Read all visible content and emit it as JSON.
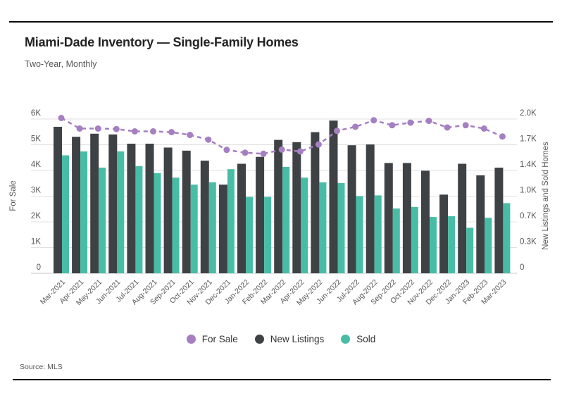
{
  "header": {
    "title": "Miami-Dade Inventory — Single-Family Homes",
    "subtitle": "Two-Year, Monthly"
  },
  "footer": {
    "source": "Source: MLS"
  },
  "colors": {
    "for_sale": "#a57fc2",
    "new_listings": "#3f4245",
    "sold": "#48bda6",
    "grid": "#e0e0e0",
    "baseline": "#c9c9c9",
    "axis_text": "#565656",
    "rule": "#0b0b0b"
  },
  "chart_data": {
    "type": "bar+line",
    "title": "Miami-Dade Inventory — Single-Family Homes",
    "subtitle": "Two-Year, Monthly",
    "source": "MLS",
    "grid": true,
    "legend_position": "bottom",
    "categories": [
      "Mar-2021",
      "Apr-2021",
      "May-2021",
      "Jun-2021",
      "Jul-2021",
      "Aug-2021",
      "Sep-2021",
      "Oct-2021",
      "Nov-2021",
      "Dec-2021",
      "Jan-2022",
      "Feb-2022",
      "Mar-2022",
      "Apr-2022",
      "May-2022",
      "Jun-2022",
      "Jul-2022",
      "Aug-2022",
      "Sep-2022",
      "Oct-2022",
      "Nov-2022",
      "Dec-2022",
      "Jan-2023",
      "Feb-2023",
      "Mar-2023"
    ],
    "series": [
      {
        "name": "For Sale",
        "type": "line",
        "axis": "left",
        "color": "#a57fc2",
        "line_style": "dashed",
        "point_style": "circle",
        "values": [
          6040,
          5630,
          5630,
          5610,
          5520,
          5520,
          5490,
          5380,
          5200,
          4800,
          4690,
          4650,
          4810,
          4740,
          5010,
          5540,
          5700,
          5950,
          5760,
          5860,
          5930,
          5670,
          5760,
          5630,
          5320
        ]
      },
      {
        "name": "New Listings",
        "type": "bar",
        "axis": "right",
        "color": "#3f4245",
        "values": [
          1900,
          1770,
          1810,
          1800,
          1680,
          1680,
          1630,
          1590,
          1460,
          1150,
          1420,
          1510,
          1730,
          1700,
          1830,
          1980,
          1660,
          1670,
          1430,
          1430,
          1330,
          1020,
          1420,
          1270,
          1370
        ]
      },
      {
        "name": "Sold",
        "type": "bar",
        "axis": "right",
        "color": "#48bda6",
        "values": [
          1530,
          1580,
          1370,
          1580,
          1390,
          1300,
          1240,
          1150,
          1180,
          1350,
          990,
          990,
          1380,
          1240,
          1180,
          1170,
          1000,
          1010,
          840,
          860,
          730,
          740,
          590,
          720,
          910
        ]
      }
    ],
    "left_axis": {
      "title": "For Sale",
      "range": [
        0,
        6000
      ],
      "ticks": [
        "0",
        "1K",
        "2K",
        "3K",
        "4K",
        "5K",
        "6K"
      ]
    },
    "right_axis": {
      "title": "New Listings and Sold Homes",
      "range": [
        0,
        2000
      ],
      "ticks": [
        "0",
        "0.3K",
        "0.7K",
        "1.0K",
        "1.4K",
        "1.7K",
        "2.0K"
      ]
    }
  }
}
